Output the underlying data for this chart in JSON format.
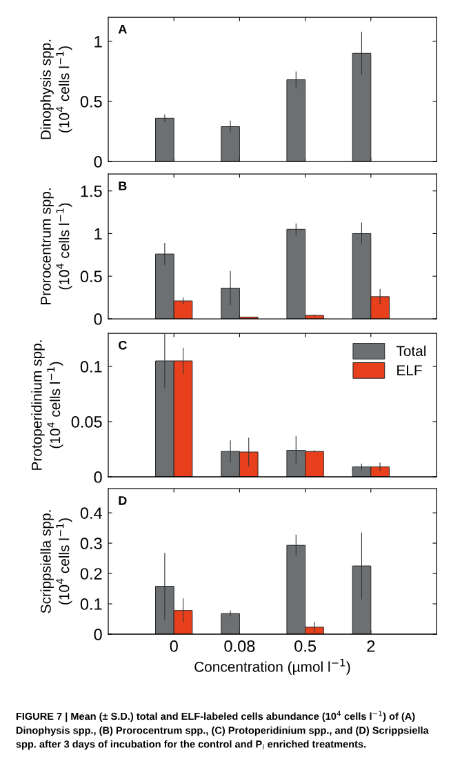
{
  "chart_data": [
    {
      "type": "bar",
      "ylabel": "Dinophysis spp.\n(10$^{4}$ cells l$^{−1}$)",
      "categories": [
        "0",
        "0.08",
        "0.5",
        "2"
      ],
      "ylim": [
        0,
        1.2
      ],
      "yticks": [
        0,
        0.5,
        1
      ],
      "tick_labels": "y",
      "grid": false,
      "legend": false,
      "annotations": [
        "A"
      ],
      "series": [
        {
          "color": "#6d7073",
          "values": [
            0.36,
            0.29,
            0.68,
            0.9
          ],
          "errors": [
            0.03,
            0.05,
            0.07,
            0.18
          ]
        },
        {
          "color": "#e8401c",
          "values": [
            null,
            null,
            null,
            null
          ]
        }
      ]
    },
    {
      "type": "bar",
      "ylabel": "Prorocentrum spp.\n(10$^{4}$ cells l$^{−1}$)",
      "categories": [
        "0",
        "0.08",
        "0.5",
        "2"
      ],
      "ylim": [
        0,
        1.7
      ],
      "yticks": [
        0,
        0.5,
        1,
        1.5
      ],
      "tick_labels": "y",
      "grid": false,
      "legend": false,
      "annotations": [
        "B"
      ],
      "series": [
        {
          "color": "#6d7073",
          "values": [
            0.76,
            0.36,
            1.05,
            1.0
          ],
          "errors": [
            0.13,
            0.2,
            0.07,
            0.13
          ]
        },
        {
          "color": "#e8401c",
          "values": [
            0.21,
            0.02,
            0.04,
            0.26
          ],
          "errors": [
            0.04,
            null,
            0.01,
            0.09
          ]
        }
      ]
    },
    {
      "type": "bar",
      "ylabel": "Protoperidinium spp.\n(10$^{4}$ cells l$^{−1}$)",
      "categories": [
        "0",
        "0.08",
        "0.5",
        "2"
      ],
      "ylim": [
        0,
        0.13
      ],
      "yticks": [
        0,
        0.05,
        0.1
      ],
      "tick_labels": "y",
      "grid": false,
      "legend": "top right",
      "annotations": [
        "C"
      ],
      "series": [
        {
          "name": "Total",
          "color": "#6d7073",
          "values": [
            0.105,
            0.023,
            0.024,
            0.009
          ],
          "errors": [
            0.025,
            0.01,
            0.013,
            0.003
          ]
        },
        {
          "name": "ELF",
          "color": "#e8401c",
          "values": [
            0.105,
            0.0225,
            0.023,
            0.009
          ],
          "errors": [
            0.012,
            0.013,
            0.001,
            0.004
          ]
        }
      ]
    },
    {
      "type": "bar",
      "ylabel": "Scrippsiella spp.\n(10$^{4}$ cells l$^{−1}$)",
      "xlabel": "Concentration (µmol l$^{−1}$)",
      "categories": [
        "0",
        "0.08",
        "0.5",
        "2"
      ],
      "ylim": [
        0,
        0.48
      ],
      "yticks": [
        0,
        0.1,
        0.2,
        0.3,
        0.4
      ],
      "grid": false,
      "legend": false,
      "annotations": [
        "D",
        "FIGURE 7 | Mean (± S.D.) total and ELF-labeled cells abundance (10$^{4}$ cells l$^{−1}$) of (A) Dinophysis spp., (B) Prorocentrum spp., (C) Protoperidinium spp., and (D) Scrippsiella spp. after 3 days of incubation for the control and P$_{i}$ enriched treatments."
      ],
      "series": [
        {
          "color": "#6d7073",
          "values": [
            0.158,
            0.068,
            0.293,
            0.225
          ],
          "errors": [
            0.11,
            0.01,
            0.035,
            0.11
          ]
        },
        {
          "color": "#e8401c",
          "values": [
            0.078,
            null,
            0.023,
            null
          ],
          "errors": [
            0.04,
            null,
            0.018,
            null
          ]
        }
      ]
    }
  ]
}
